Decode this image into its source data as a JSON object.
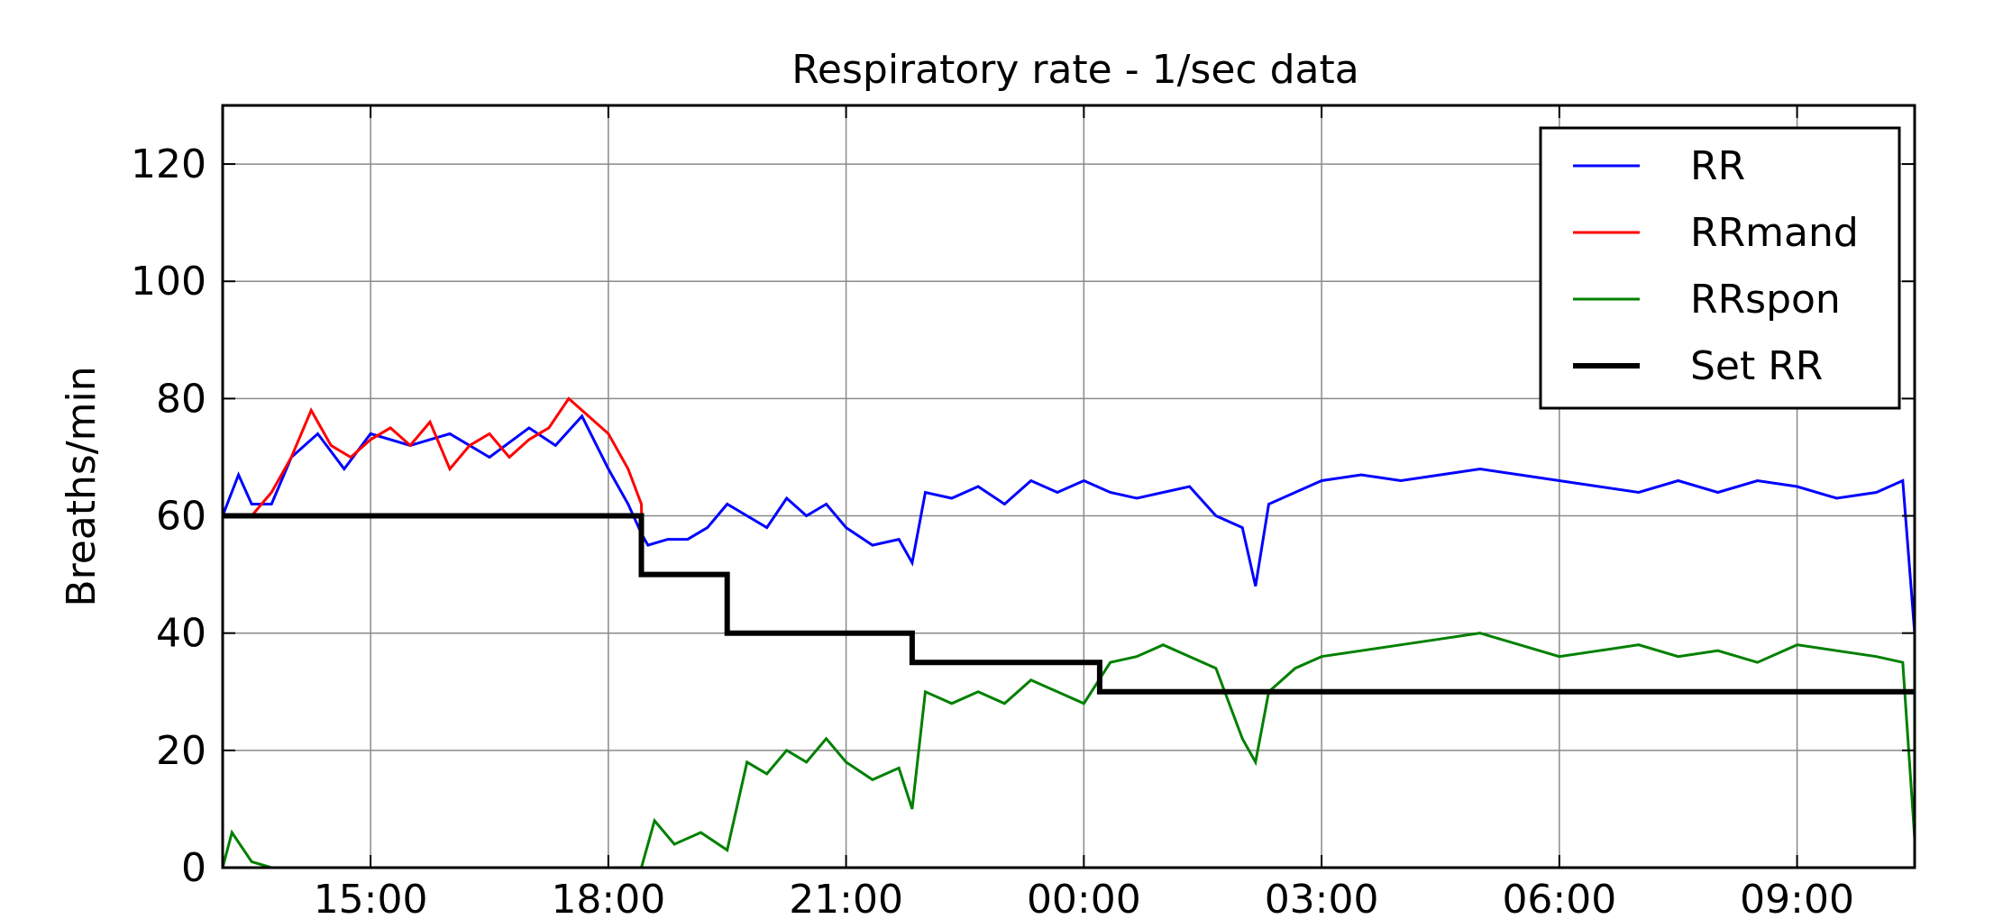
{
  "chart_data": {
    "type": "line",
    "title": "Respiratory rate -  1/sec data",
    "xlabel": "",
    "ylabel": "Breaths/min",
    "xlim": [
      "13:08",
      "10:29"
    ],
    "ylim": [
      0,
      130
    ],
    "x_ticks": [
      "15:00",
      "18:00",
      "21:00",
      "00:00",
      "03:00",
      "06:00",
      "09:00"
    ],
    "y_ticks": [
      0,
      20,
      40,
      60,
      80,
      100,
      120
    ],
    "grid": true,
    "legend_position": "top-right",
    "colors": {
      "RR": "#0000ff",
      "RRmand": "#ff0000",
      "RRspon": "#008000",
      "Set RR": "#000000"
    },
    "series": [
      {
        "name": "RR",
        "x": [
          "13:08",
          "13:20",
          "13:30",
          "13:45",
          "14:00",
          "14:20",
          "14:40",
          "15:00",
          "15:30",
          "16:00",
          "16:30",
          "17:00",
          "17:20",
          "17:40",
          "18:00",
          "18:15",
          "18:25",
          "18:30",
          "18:45",
          "19:00",
          "19:15",
          "19:30",
          "19:45",
          "20:00",
          "20:15",
          "20:30",
          "20:45",
          "21:00",
          "21:20",
          "21:40",
          "21:50",
          "22:00",
          "22:20",
          "22:40",
          "23:00",
          "23:20",
          "23:40",
          "00:00",
          "00:20",
          "00:40",
          "01:00",
          "01:20",
          "01:40",
          "02:00",
          "02:10",
          "02:20",
          "02:40",
          "03:00",
          "03:30",
          "04:00",
          "04:30",
          "05:00",
          "05:30",
          "06:00",
          "06:30",
          "07:00",
          "07:30",
          "08:00",
          "08:30",
          "09:00",
          "09:30",
          "10:00",
          "10:20",
          "10:29"
        ],
        "y": [
          60,
          67,
          62,
          62,
          70,
          74,
          68,
          74,
          72,
          74,
          70,
          75,
          72,
          77,
          68,
          62,
          57,
          55,
          56,
          56,
          58,
          62,
          60,
          58,
          63,
          60,
          62,
          58,
          55,
          56,
          52,
          64,
          63,
          65,
          62,
          66,
          64,
          66,
          64,
          63,
          64,
          65,
          60,
          58,
          48,
          62,
          64,
          66,
          67,
          66,
          67,
          68,
          67,
          66,
          65,
          64,
          66,
          64,
          66,
          65,
          63,
          64,
          66,
          40
        ]
      },
      {
        "name": "RRmand",
        "x": [
          "13:08",
          "13:30",
          "13:45",
          "14:00",
          "14:15",
          "14:30",
          "14:45",
          "15:00",
          "15:15",
          "15:30",
          "15:45",
          "16:00",
          "16:15",
          "16:30",
          "16:45",
          "17:00",
          "17:15",
          "17:30",
          "17:45",
          "18:00",
          "18:15",
          "18:25",
          "18:26",
          "19:30",
          "19:31",
          "21:50",
          "21:51",
          "00:12",
          "00:13",
          "10:29"
        ],
        "y": [
          60,
          60,
          64,
          70,
          78,
          72,
          70,
          73,
          75,
          72,
          76,
          68,
          72,
          74,
          70,
          73,
          75,
          80,
          77,
          74,
          68,
          62,
          50,
          50,
          40,
          40,
          35,
          35,
          30,
          30
        ]
      },
      {
        "name": "RRspon",
        "x": [
          "13:08",
          "13:15",
          "13:30",
          "13:45",
          "14:00",
          "15:00",
          "16:00",
          "17:00",
          "18:00",
          "18:25",
          "18:35",
          "18:50",
          "19:10",
          "19:30",
          "19:45",
          "20:00",
          "20:15",
          "20:30",
          "20:45",
          "21:00",
          "21:20",
          "21:40",
          "21:50",
          "22:00",
          "22:20",
          "22:40",
          "23:00",
          "23:20",
          "23:40",
          "00:00",
          "00:20",
          "00:40",
          "01:00",
          "01:20",
          "01:40",
          "02:00",
          "02:10",
          "02:20",
          "02:40",
          "03:00",
          "03:30",
          "04:00",
          "04:30",
          "05:00",
          "05:30",
          "06:00",
          "06:30",
          "07:00",
          "07:30",
          "08:00",
          "08:30",
          "09:00",
          "09:30",
          "10:00",
          "10:20",
          "10:29"
        ],
        "y": [
          0,
          6,
          1,
          0,
          0,
          0,
          0,
          0,
          0,
          0,
          8,
          4,
          6,
          3,
          18,
          16,
          20,
          18,
          22,
          18,
          15,
          17,
          10,
          30,
          28,
          30,
          28,
          32,
          30,
          28,
          35,
          36,
          38,
          36,
          34,
          22,
          18,
          30,
          34,
          36,
          37,
          38,
          39,
          40,
          38,
          36,
          37,
          38,
          36,
          37,
          35,
          38,
          37,
          36,
          35,
          5
        ]
      },
      {
        "name": "Set RR",
        "x": [
          "13:08",
          "18:25",
          "18:25",
          "19:30",
          "19:30",
          "21:50",
          "21:50",
          "00:12",
          "00:12",
          "10:29"
        ],
        "y": [
          60,
          60,
          50,
          50,
          40,
          40,
          35,
          35,
          30,
          30
        ]
      }
    ]
  }
}
